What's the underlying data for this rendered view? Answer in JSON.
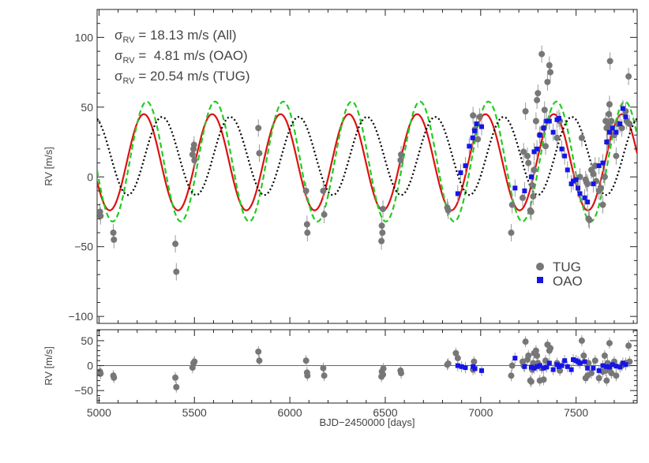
{
  "chart_data": [
    {
      "type": "scatter",
      "panel": "main",
      "ylabel": "RV [m/s]",
      "xlim": [
        4990,
        7820
      ],
      "ylim": [
        -105,
        120
      ],
      "yticks": [
        -100,
        -50,
        0,
        50,
        100
      ],
      "xticks": [
        5000,
        5500,
        6000,
        6500,
        7000,
        7500
      ],
      "grid": false,
      "legend_position": "bottom-right",
      "annotations": [
        {
          "sym": "σ",
          "sub": "RV",
          "text": " = 18.13 m/s (All)"
        },
        {
          "sym": "σ",
          "sub": "RV",
          "text": " =  4.81 m/s (OAO)"
        },
        {
          "sym": "σ",
          "sub": "RV",
          "text": " = 20.54 m/s (TUG)"
        }
      ],
      "series": [
        {
          "name": "TUG",
          "marker": "circle",
          "color": "#777777",
          "points": [
            [
              5005,
              -25
            ],
            [
              5008,
              -28
            ],
            [
              5075,
              -40
            ],
            [
              5078,
              -45
            ],
            [
              5400,
              -48
            ],
            [
              5405,
              -68
            ],
            [
              5490,
              16
            ],
            [
              5495,
              20
            ],
            [
              5498,
              23
            ],
            [
              5500,
              12
            ],
            [
              5835,
              35
            ],
            [
              5840,
              17
            ],
            [
              6085,
              -10
            ],
            [
              6090,
              -34
            ],
            [
              6092,
              -40
            ],
            [
              6175,
              -10
            ],
            [
              6180,
              -27
            ],
            [
              6480,
              -46
            ],
            [
              6482,
              -35
            ],
            [
              6485,
              -40
            ],
            [
              6488,
              -23
            ],
            [
              6580,
              12
            ],
            [
              6583,
              16
            ],
            [
              6825,
              -22
            ],
            [
              6830,
              -24
            ],
            [
              6960,
              44
            ],
            [
              6970,
              34
            ],
            [
              6985,
              27
            ],
            [
              6995,
              43
            ],
            [
              7160,
              -40
            ],
            [
              7165,
              -20
            ],
            [
              7220,
              -15
            ],
            [
              7225,
              18
            ],
            [
              7235,
              47
            ],
            [
              7245,
              15
            ],
            [
              7250,
              10
            ],
            [
              7260,
              -24
            ],
            [
              7265,
              -25
            ],
            [
              7270,
              -6
            ],
            [
              7275,
              -14
            ],
            [
              7280,
              5
            ],
            [
              7290,
              40
            ],
            [
              7295,
              55
            ],
            [
              7300,
              60
            ],
            [
              7310,
              30
            ],
            [
              7320,
              88
            ],
            [
              7330,
              35
            ],
            [
              7335,
              48
            ],
            [
              7340,
              22
            ],
            [
              7350,
              68
            ],
            [
              7360,
              80
            ],
            [
              7365,
              75
            ],
            [
              7400,
              28
            ],
            [
              7415,
              40
            ],
            [
              7520,
              0
            ],
            [
              7530,
              28
            ],
            [
              7550,
              -2
            ],
            [
              7555,
              -4
            ],
            [
              7560,
              -5
            ],
            [
              7565,
              -30
            ],
            [
              7570,
              -31
            ],
            [
              7580,
              5
            ],
            [
              7590,
              2
            ],
            [
              7600,
              8
            ],
            [
              7605,
              -3
            ],
            [
              7620,
              -10
            ],
            [
              7630,
              -8
            ],
            [
              7640,
              -20
            ],
            [
              7650,
              0
            ],
            [
              7655,
              40
            ],
            [
              7660,
              35
            ],
            [
              7665,
              25
            ],
            [
              7668,
              38
            ],
            [
              7672,
              45
            ],
            [
              7675,
              52
            ],
            [
              7678,
              83
            ],
            [
              7685,
              40
            ],
            [
              7700,
              30
            ],
            [
              7710,
              15
            ],
            [
              7720,
              38
            ],
            [
              7740,
              35
            ],
            [
              7760,
              47
            ],
            [
              7765,
              40
            ],
            [
              7775,
              72
            ],
            [
              7780,
              38
            ]
          ]
        },
        {
          "name": "OAO",
          "marker": "square",
          "color": "#1515e6",
          "points": [
            [
              6880,
              -12
            ],
            [
              6895,
              3
            ],
            [
              6920,
              8
            ],
            [
              6940,
              22
            ],
            [
              6958,
              28
            ],
            [
              6968,
              33
            ],
            [
              6978,
              38
            ],
            [
              7005,
              36
            ],
            [
              7180,
              -8
            ],
            [
              7230,
              -10
            ],
            [
              7265,
              0
            ],
            [
              7280,
              18
            ],
            [
              7295,
              20
            ],
            [
              7310,
              30
            ],
            [
              7330,
              35
            ],
            [
              7345,
              40
            ],
            [
              7360,
              40
            ],
            [
              7380,
              32
            ],
            [
              7400,
              41
            ],
            [
              7410,
              42
            ],
            [
              7425,
              20
            ],
            [
              7440,
              15
            ],
            [
              7455,
              5
            ],
            [
              7475,
              -5
            ],
            [
              7485,
              -3
            ],
            [
              7500,
              -2
            ],
            [
              7510,
              -8
            ],
            [
              7520,
              -12
            ],
            [
              7545,
              -15
            ],
            [
              7560,
              -18
            ],
            [
              7590,
              -5
            ],
            [
              7620,
              8
            ],
            [
              7640,
              10
            ],
            [
              7660,
              25
            ],
            [
              7675,
              32
            ],
            [
              7690,
              35
            ],
            [
              7710,
              32
            ],
            [
              7730,
              38
            ],
            [
              7745,
              49
            ],
            [
              7760,
              43
            ]
          ]
        }
      ],
      "model_curves": [
        {
          "color": "#dd1111",
          "style": "solid",
          "period": 358,
          "amplitude": 34.5,
          "offset": 10.5,
          "phase_peak": 5235
        },
        {
          "color": "#22cc22",
          "style": "dashed",
          "period": 358,
          "amplitude": 43,
          "offset": 11,
          "phase_peak": 5250
        },
        {
          "color": "#000000",
          "style": "dotted",
          "period": 358,
          "amplitude": 28,
          "offset": 15,
          "phase_peak": 5330
        }
      ]
    },
    {
      "type": "scatter",
      "panel": "residuals",
      "xlabel": "BJD−2450000 [days]",
      "ylabel": "RV [m/s]",
      "xlim": [
        4990,
        7820
      ],
      "ylim": [
        -75,
        72
      ],
      "yticks": [
        -50,
        0,
        50
      ],
      "xticks": [
        5000,
        5500,
        6000,
        6500,
        7000,
        7500
      ],
      "zero_line": true,
      "series": [
        {
          "name": "TUG",
          "marker": "circle",
          "color": "#777777",
          "points": [
            [
              5005,
              -12
            ],
            [
              5008,
              -16
            ],
            [
              5075,
              -20
            ],
            [
              5078,
              -24
            ],
            [
              5400,
              -24
            ],
            [
              5405,
              -43
            ],
            [
              5490,
              -4
            ],
            [
              5495,
              5
            ],
            [
              5500,
              8
            ],
            [
              5835,
              28
            ],
            [
              5840,
              10
            ],
            [
              6085,
              10
            ],
            [
              6090,
              -14
            ],
            [
              6092,
              -20
            ],
            [
              6175,
              -5
            ],
            [
              6180,
              -20
            ],
            [
              6480,
              -22
            ],
            [
              6482,
              -12
            ],
            [
              6488,
              -18
            ],
            [
              6490,
              -6
            ],
            [
              6580,
              -10
            ],
            [
              6583,
              -15
            ],
            [
              6825,
              2
            ],
            [
              6830,
              4
            ],
            [
              6870,
              25
            ],
            [
              6880,
              15
            ],
            [
              6960,
              -8
            ],
            [
              6965,
              8
            ],
            [
              7160,
              -20
            ],
            [
              7165,
              0
            ],
            [
              7220,
              8
            ],
            [
              7225,
              0
            ],
            [
              7235,
              48
            ],
            [
              7245,
              12
            ],
            [
              7250,
              20
            ],
            [
              7260,
              -30
            ],
            [
              7265,
              -32
            ],
            [
              7270,
              -8
            ],
            [
              7275,
              5
            ],
            [
              7280,
              25
            ],
            [
              7290,
              30
            ],
            [
              7295,
              20
            ],
            [
              7300,
              5
            ],
            [
              7310,
              -30
            ],
            [
              7320,
              -5
            ],
            [
              7330,
              -28
            ],
            [
              7340,
              10
            ],
            [
              7350,
              42
            ],
            [
              7360,
              30
            ],
            [
              7365,
              35
            ],
            [
              7400,
              5
            ],
            [
              7415,
              -10
            ],
            [
              7520,
              5
            ],
            [
              7530,
              50
            ],
            [
              7540,
              20
            ],
            [
              7550,
              -25
            ],
            [
              7560,
              -20
            ],
            [
              7565,
              5
            ],
            [
              7580,
              -15
            ],
            [
              7600,
              10
            ],
            [
              7620,
              -25
            ],
            [
              7640,
              -12
            ],
            [
              7650,
              20
            ],
            [
              7655,
              -10
            ],
            [
              7660,
              -30
            ],
            [
              7665,
              5
            ],
            [
              7670,
              -5
            ],
            [
              7675,
              45
            ],
            [
              7685,
              -15
            ],
            [
              7700,
              8
            ],
            [
              7710,
              -20
            ],
            [
              7740,
              0
            ],
            [
              7760,
              5
            ],
            [
              7775,
              40
            ],
            [
              7780,
              8
            ]
          ]
        },
        {
          "name": "OAO",
          "marker": "square",
          "color": "#1515e6",
          "points": [
            [
              6880,
              0
            ],
            [
              6900,
              -2
            ],
            [
              6920,
              -4
            ],
            [
              6960,
              -2
            ],
            [
              6970,
              -6
            ],
            [
              7005,
              -10
            ],
            [
              7180,
              15
            ],
            [
              7230,
              -2
            ],
            [
              7265,
              -3
            ],
            [
              7280,
              -5
            ],
            [
              7295,
              -2
            ],
            [
              7310,
              0
            ],
            [
              7330,
              -5
            ],
            [
              7345,
              -3
            ],
            [
              7360,
              5
            ],
            [
              7380,
              -8
            ],
            [
              7400,
              2
            ],
            [
              7410,
              -2
            ],
            [
              7425,
              0
            ],
            [
              7440,
              10
            ],
            [
              7455,
              -2
            ],
            [
              7475,
              -8
            ],
            [
              7485,
              12
            ],
            [
              7500,
              10
            ],
            [
              7510,
              8
            ],
            [
              7520,
              5
            ],
            [
              7545,
              8
            ],
            [
              7560,
              -5
            ],
            [
              7590,
              -5
            ],
            [
              7620,
              -10
            ],
            [
              7640,
              0
            ],
            [
              7660,
              -2
            ],
            [
              7675,
              -3
            ],
            [
              7690,
              2
            ],
            [
              7710,
              -1
            ],
            [
              7730,
              -3
            ],
            [
              7745,
              5
            ],
            [
              7760,
              2
            ]
          ]
        }
      ]
    }
  ]
}
